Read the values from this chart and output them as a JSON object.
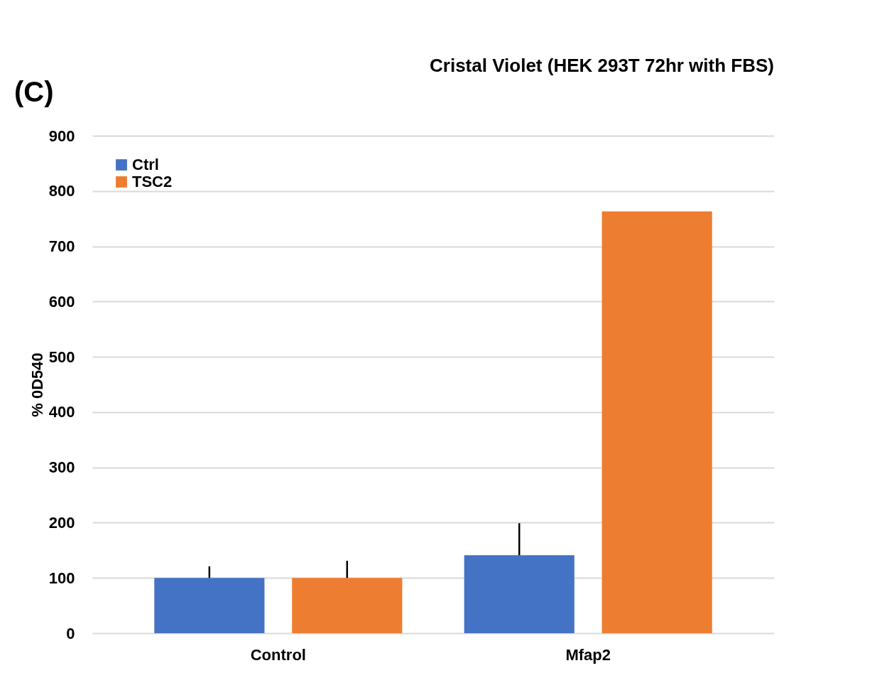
{
  "chart_data": {
    "type": "bar",
    "title": "Cristal Violet (HEK 293T 72hr with FBS)",
    "ylabel": "% 0D540",
    "annotations": [
      "(C)"
    ],
    "categories": [
      "Control",
      "Mfap2"
    ],
    "series": [
      {
        "name": "Ctrl",
        "color": "#4472c4",
        "values": [
          100,
          141
        ],
        "errors": [
          [
            100,
            121
          ],
          [
            141,
            199
          ]
        ]
      },
      {
        "name": "TSC2",
        "color": "#ed7d31",
        "values": [
          100,
          763
        ],
        "errors": [
          [
            100,
            131
          ],
          null
        ]
      }
    ],
    "ylim": [
      0,
      900
    ],
    "yticks": [
      0,
      100,
      200,
      300,
      400,
      500,
      600,
      700,
      800,
      900
    ],
    "grid": "y",
    "legend": "top left"
  }
}
